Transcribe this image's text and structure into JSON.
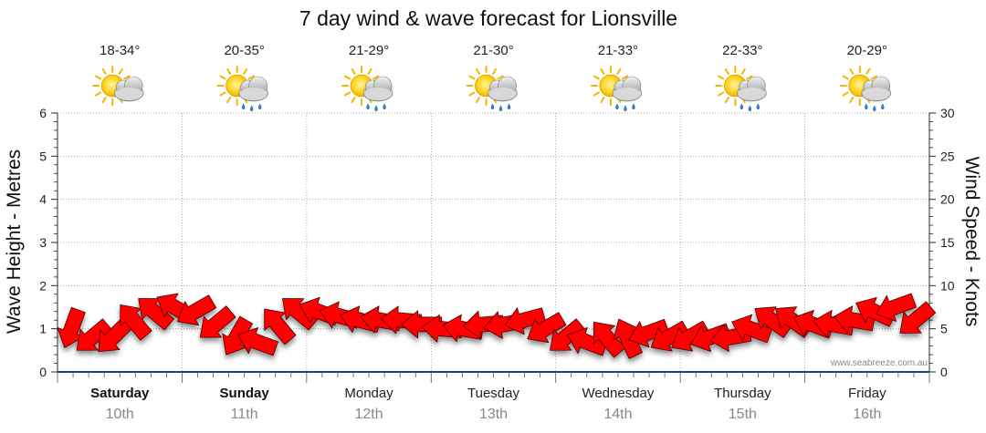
{
  "chart_data": {
    "type": "line",
    "title": "7 day wind & wave forecast for Lionsville",
    "ylabel_left": "Wave Height - Metres",
    "ylabel_right": "Wind Speed - Knots",
    "ylim_left": [
      0,
      6
    ],
    "ylim_right": [
      0,
      30
    ],
    "yticks_left": [
      "0",
      "1",
      "2",
      "3",
      "4",
      "5",
      "6"
    ],
    "yticks_right": [
      "0",
      "5",
      "10",
      "15",
      "20",
      "25",
      "30"
    ],
    "days": [
      {
        "name": "Saturday",
        "date": "10th",
        "temp": "18-34°",
        "weather": "sun-cloud-icon",
        "bold": true
      },
      {
        "name": "Sunday",
        "date": "11th",
        "temp": "20-35°",
        "weather": "sun-cloud-rain-icon",
        "bold": true
      },
      {
        "name": "Monday",
        "date": "12th",
        "temp": "21-29°",
        "weather": "sun-cloud-rain-icon",
        "bold": false
      },
      {
        "name": "Tuesday",
        "date": "13th",
        "temp": "21-30°",
        "weather": "sun-cloud-rain-icon",
        "bold": false
      },
      {
        "name": "Wednesday",
        "date": "14th",
        "temp": "21-33°",
        "weather": "sun-cloud-rain-icon",
        "bold": false
      },
      {
        "name": "Thursday",
        "date": "15th",
        "temp": "22-33°",
        "weather": "sun-cloud-rain-icon",
        "bold": false
      },
      {
        "name": "Friday",
        "date": "16th",
        "temp": "20-29°",
        "weather": "sun-cloud-rain-icon",
        "bold": false
      }
    ],
    "series": [
      {
        "name": "Wave height",
        "axis": "left",
        "values": [
          1.0,
          0.8,
          0.8,
          1.2,
          1.4,
          1.5,
          1.4,
          1.1,
          0.8,
          0.7,
          1.1,
          1.4,
          1.4,
          1.3,
          1.2,
          1.2,
          1.2,
          1.1,
          1.0,
          1.0,
          1.1,
          1.1,
          1.2,
          1.0,
          0.8,
          0.7,
          0.8,
          0.8,
          0.9,
          0.8,
          0.8,
          0.8,
          0.8,
          1.0,
          1.2,
          1.2,
          1.1,
          1.1,
          1.2,
          1.4,
          1.5,
          1.2
        ],
        "arrow_angles": [
          110,
          140,
          135,
          230,
          220,
          210,
          150,
          140,
          120,
          200,
          230,
          220,
          200,
          195,
          195,
          190,
          185,
          180,
          185,
          190,
          175,
          170,
          165,
          150,
          140,
          200,
          230,
          245,
          160,
          150,
          150,
          160,
          170,
          200,
          215,
          215,
          200,
          190,
          190,
          205,
          160,
          140
        ],
        "color": "#ff0000"
      }
    ],
    "colors": {
      "arrow": "#ff0000",
      "arrow_stroke": "#4a0000",
      "grid": "#9a9a9a",
      "axis": "#2a2a2a",
      "base": "#1f3f8f"
    },
    "credit": "www.seabreeze.com.au"
  }
}
